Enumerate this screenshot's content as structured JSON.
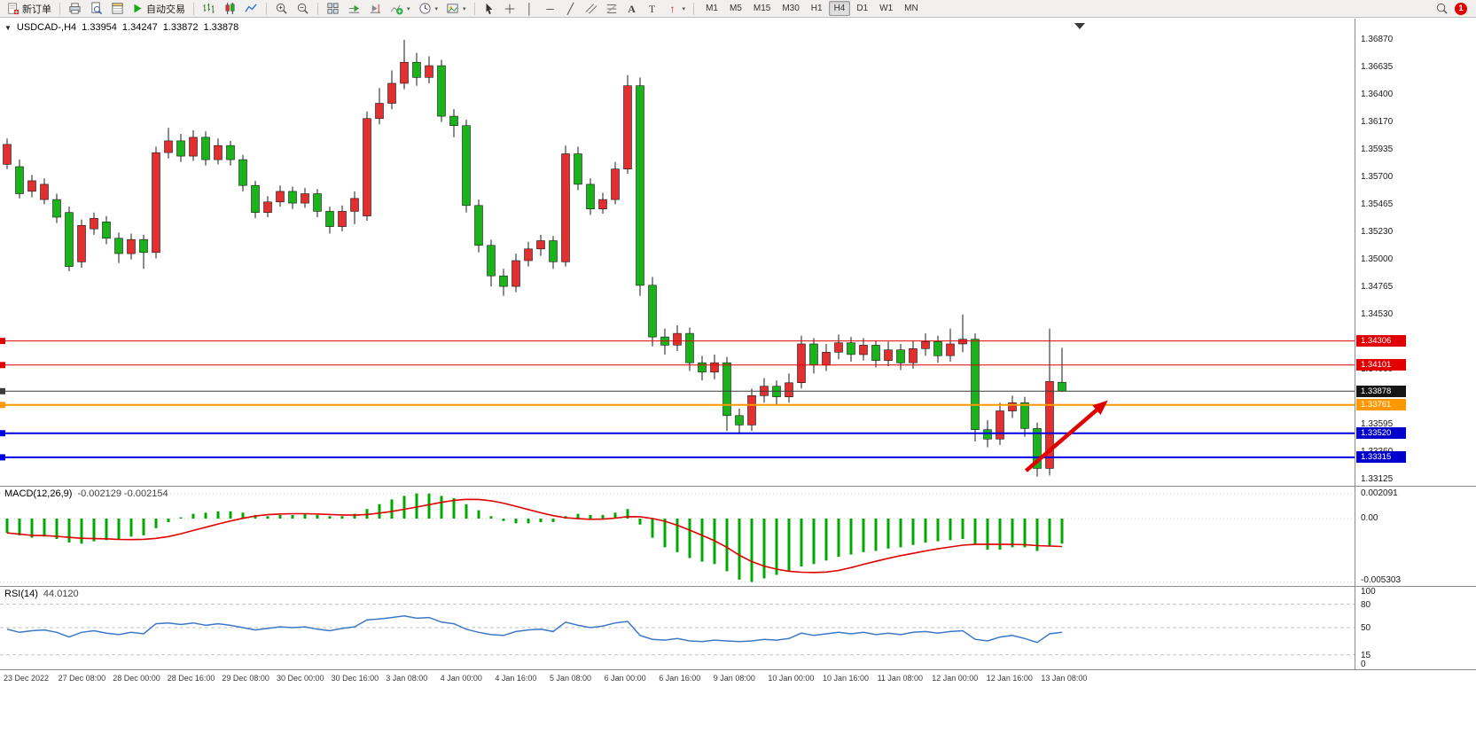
{
  "toolbar": {
    "new_order": "新订单",
    "auto_trading": "自动交易",
    "timeframes": [
      "M1",
      "M5",
      "M15",
      "M30",
      "H1",
      "H4",
      "D1",
      "W1",
      "MN"
    ],
    "active_timeframe": "H4",
    "notification_count": "1"
  },
  "chart": {
    "symbol_title": "USDCAD-,H4",
    "open": "1.33954",
    "high": "1.34247",
    "low": "1.33872",
    "close": "1.33878"
  },
  "price_axis": {
    "labels": [
      "1.36870",
      "1.36635",
      "1.36400",
      "1.36170",
      "1.35935",
      "1.35700",
      "1.35465",
      "1.35230",
      "1.35000",
      "1.34765",
      "1.34530",
      "1.34060",
      "1.33595",
      "1.33360",
      "1.33125"
    ],
    "badges": [
      {
        "value": "1.34306",
        "color": "#e00000"
      },
      {
        "value": "1.34101",
        "color": "#e00000"
      },
      {
        "value": "1.33878",
        "color": "#151515"
      },
      {
        "value": "1.33761",
        "color": "#ff9800"
      },
      {
        "value": "1.33520",
        "color": "#0000cc"
      },
      {
        "value": "1.33315",
        "color": "#0000cc"
      }
    ]
  },
  "time_axis": [
    "23 Dec 2022",
    "27 Dec 08:00",
    "28 Dec 00:00",
    "28 Dec 16:00",
    "29 Dec 08:00",
    "30 Dec 00:00",
    "30 Dec 16:00",
    "3 Jan 08:00",
    "4 Jan 00:00",
    "4 Jan 16:00",
    "5 Jan 08:00",
    "6 Jan 00:00",
    "6 Jan 16:00",
    "9 Jan 08:00",
    "10 Jan 00:00",
    "10 Jan 16:00",
    "11 Jan 08:00",
    "12 Jan 00:00",
    "12 Jan 16:00",
    "13 Jan 08:00"
  ],
  "chart_data": {
    "type": "candlestick",
    "symbol": "USDCAD",
    "timeframe": "H4",
    "up_color": "#e03030",
    "down_color": "#1cb21c",
    "price_range_visible": [
      1.3306,
      1.3696
    ],
    "ohlc": [
      [
        1.3581,
        1.3603,
        1.3577,
        1.3598
      ],
      [
        1.3579,
        1.3585,
        1.3552,
        1.3556
      ],
      [
        1.3558,
        1.3572,
        1.3553,
        1.3567
      ],
      [
        1.3551,
        1.3569,
        1.3547,
        1.3564
      ],
      [
        1.3551,
        1.3556,
        1.3531,
        1.3536
      ],
      [
        1.354,
        1.3545,
        1.349,
        1.3494
      ],
      [
        1.3498,
        1.3534,
        1.3493,
        1.3529
      ],
      [
        1.3526,
        1.354,
        1.3521,
        1.3535
      ],
      [
        1.3532,
        1.3537,
        1.3513,
        1.3518
      ],
      [
        1.3518,
        1.3523,
        1.3497,
        1.3505
      ],
      [
        1.3505,
        1.3522,
        1.35,
        1.3517
      ],
      [
        1.3517,
        1.3521,
        1.3492,
        1.3506
      ],
      [
        1.3506,
        1.3596,
        1.3501,
        1.3591
      ],
      [
        1.3591,
        1.3612,
        1.3586,
        1.3601
      ],
      [
        1.3601,
        1.3607,
        1.3583,
        1.3588
      ],
      [
        1.3588,
        1.361,
        1.3584,
        1.3604
      ],
      [
        1.3604,
        1.3609,
        1.358,
        1.3585
      ],
      [
        1.3585,
        1.3603,
        1.3581,
        1.3597
      ],
      [
        1.3597,
        1.3601,
        1.358,
        1.3585
      ],
      [
        1.3585,
        1.3589,
        1.3558,
        1.3563
      ],
      [
        1.3563,
        1.3567,
        1.3535,
        1.354
      ],
      [
        1.354,
        1.3554,
        1.3536,
        1.3549
      ],
      [
        1.3549,
        1.3563,
        1.3545,
        1.3558
      ],
      [
        1.3558,
        1.3562,
        1.3543,
        1.3548
      ],
      [
        1.3548,
        1.3561,
        1.3544,
        1.3556
      ],
      [
        1.3556,
        1.356,
        1.3536,
        1.3541
      ],
      [
        1.3541,
        1.3545,
        1.3522,
        1.3528
      ],
      [
        1.3528,
        1.3546,
        1.3524,
        1.3541
      ],
      [
        1.3541,
        1.3558,
        1.353,
        1.3552
      ],
      [
        1.3537,
        1.3626,
        1.3533,
        1.362
      ],
      [
        1.362,
        1.3646,
        1.3615,
        1.3633
      ],
      [
        1.3633,
        1.3661,
        1.3628,
        1.365
      ],
      [
        1.365,
        1.3687,
        1.3645,
        1.3668
      ],
      [
        1.3668,
        1.3676,
        1.3648,
        1.3655
      ],
      [
        1.3655,
        1.3673,
        1.365,
        1.3665
      ],
      [
        1.3665,
        1.367,
        1.3617,
        1.3622
      ],
      [
        1.3622,
        1.3628,
        1.3604,
        1.3614
      ],
      [
        1.3614,
        1.3619,
        1.354,
        1.3546
      ],
      [
        1.3546,
        1.3551,
        1.3506,
        1.3512
      ],
      [
        1.3512,
        1.3517,
        1.3477,
        1.3486
      ],
      [
        1.3486,
        1.3492,
        1.3469,
        1.3477
      ],
      [
        1.3477,
        1.3505,
        1.3472,
        1.3499
      ],
      [
        1.3499,
        1.3515,
        1.3494,
        1.3509
      ],
      [
        1.3509,
        1.3521,
        1.3503,
        1.3516
      ],
      [
        1.3516,
        1.352,
        1.3492,
        1.3498
      ],
      [
        1.3498,
        1.3597,
        1.3494,
        1.359
      ],
      [
        1.359,
        1.3596,
        1.3559,
        1.3564
      ],
      [
        1.3564,
        1.3569,
        1.3538,
        1.3543
      ],
      [
        1.3543,
        1.3557,
        1.3539,
        1.3551
      ],
      [
        1.3551,
        1.3583,
        1.3547,
        1.3577
      ],
      [
        1.3577,
        1.3657,
        1.3573,
        1.3648
      ],
      [
        1.3648,
        1.3655,
        1.3469,
        1.3478
      ],
      [
        1.3478,
        1.3485,
        1.3426,
        1.3434
      ],
      [
        1.3434,
        1.3441,
        1.3419,
        1.3427
      ],
      [
        1.3427,
        1.3444,
        1.3422,
        1.3437
      ],
      [
        1.3437,
        1.3442,
        1.3405,
        1.3412
      ],
      [
        1.3412,
        1.3418,
        1.3397,
        1.3404
      ],
      [
        1.3404,
        1.3419,
        1.3398,
        1.3412
      ],
      [
        1.3412,
        1.3417,
        1.3354,
        1.3367
      ],
      [
        1.3367,
        1.3373,
        1.3351,
        1.3359
      ],
      [
        1.3359,
        1.339,
        1.3354,
        1.3384
      ],
      [
        1.3384,
        1.3399,
        1.3378,
        1.3392
      ],
      [
        1.3392,
        1.3397,
        1.3376,
        1.3383
      ],
      [
        1.3383,
        1.3403,
        1.3378,
        1.3395
      ],
      [
        1.3395,
        1.3435,
        1.339,
        1.3428
      ],
      [
        1.3428,
        1.3433,
        1.3403,
        1.341
      ],
      [
        1.341,
        1.3428,
        1.3405,
        1.3421
      ],
      [
        1.3421,
        1.3436,
        1.3415,
        1.3429
      ],
      [
        1.3429,
        1.3434,
        1.3413,
        1.3419
      ],
      [
        1.3419,
        1.3433,
        1.3414,
        1.3427
      ],
      [
        1.3427,
        1.3431,
        1.3408,
        1.3414
      ],
      [
        1.3414,
        1.343,
        1.3409,
        1.3423
      ],
      [
        1.3423,
        1.3428,
        1.3406,
        1.3412
      ],
      [
        1.3412,
        1.3431,
        1.3407,
        1.3424
      ],
      [
        1.3424,
        1.3437,
        1.3418,
        1.343
      ],
      [
        1.343,
        1.3435,
        1.3412,
        1.3418
      ],
      [
        1.3418,
        1.3441,
        1.3413,
        1.3428
      ],
      [
        1.3428,
        1.3453,
        1.3421,
        1.3432
      ],
      [
        1.3432,
        1.3437,
        1.3345,
        1.3355
      ],
      [
        1.3355,
        1.3363,
        1.334,
        1.3347
      ],
      [
        1.3347,
        1.3378,
        1.3342,
        1.3371
      ],
      [
        1.3371,
        1.3384,
        1.3365,
        1.3378
      ],
      [
        1.3378,
        1.3383,
        1.3349,
        1.3356
      ],
      [
        1.3356,
        1.3361,
        1.3315,
        1.3322
      ],
      [
        1.3322,
        1.3441,
        1.3316,
        1.3396
      ],
      [
        1.33954,
        1.34247,
        1.33872,
        1.33878
      ]
    ],
    "hlines": [
      {
        "price": 1.34306,
        "color": "#e00000",
        "width": 1
      },
      {
        "price": 1.34101,
        "color": "#e00000",
        "width": 1
      },
      {
        "price": 1.33878,
        "color": "#3c3c3c",
        "width": 1
      },
      {
        "price": 1.33761,
        "color": "#ff9800",
        "width": 2
      },
      {
        "price": 1.3352,
        "color": "#0000e0",
        "width": 2
      },
      {
        "price": 1.33315,
        "color": "#0000e0",
        "width": 2
      }
    ],
    "arrow_annotation": {
      "from": {
        "bar": 82.1,
        "price": 1.332
      },
      "to": {
        "bar": 88.7,
        "price": 1.338
      },
      "color": "#e00000"
    },
    "indicators": {
      "macd": {
        "label": "MACD(12,26,9)",
        "current": "-0.002129 -0.002154",
        "axis_labels": [
          "0.002091",
          "0.00",
          "-0.005303"
        ],
        "histogram_color": "#00a800",
        "signal_color": "#e00000",
        "histogram": [
          -0.0012,
          -0.0014,
          -0.0016,
          -0.0015,
          -0.0017,
          -0.002,
          -0.0021,
          -0.0019,
          -0.0018,
          -0.0017,
          -0.0015,
          -0.0014,
          -0.0008,
          -0.0003,
          0.0001,
          0.0004,
          0.0005,
          0.0006,
          0.0006,
          0.0005,
          0.0003,
          0.0002,
          0.0003,
          0.0003,
          0.0004,
          0.0003,
          0.0002,
          0.0002,
          0.0004,
          0.0008,
          0.0012,
          0.0016,
          0.0019,
          0.0021,
          0.0021,
          0.0019,
          0.0017,
          0.0012,
          0.0007,
          0.0002,
          -0.0002,
          -0.0004,
          -0.0004,
          -0.0003,
          -0.0003,
          0.0002,
          0.0004,
          0.0003,
          0.0003,
          0.0005,
          0.0008,
          -0.0005,
          -0.0016,
          -0.0024,
          -0.0028,
          -0.0033,
          -0.0036,
          -0.0038,
          -0.0044,
          -0.0051,
          -0.0053,
          -0.005,
          -0.0047,
          -0.0044,
          -0.004,
          -0.0038,
          -0.0035,
          -0.0032,
          -0.003,
          -0.0028,
          -0.0027,
          -0.0025,
          -0.0024,
          -0.0022,
          -0.002,
          -0.0019,
          -0.0018,
          -0.0017,
          -0.0022,
          -0.0026,
          -0.0026,
          -0.0024,
          -0.0024,
          -0.0027,
          -0.0023,
          -0.0021
        ]
      },
      "rsi": {
        "label": "RSI(14)",
        "current": "44.0120",
        "axis_labels": [
          "100",
          "80",
          "50",
          "15",
          "0"
        ],
        "levels": [
          80,
          50,
          15
        ],
        "line_color": "#3a78c8",
        "series": [
          48,
          44,
          46,
          47,
          44,
          38,
          44,
          46,
          43,
          41,
          44,
          42,
          55,
          56,
          54,
          56,
          53,
          55,
          53,
          50,
          47,
          49,
          51,
          50,
          51,
          48,
          46,
          49,
          51,
          60,
          61,
          63,
          65,
          62,
          63,
          57,
          55,
          48,
          44,
          41,
          40,
          45,
          47,
          48,
          45,
          57,
          53,
          50,
          52,
          56,
          58,
          40,
          35,
          34,
          36,
          33,
          32,
          34,
          33,
          32,
          33,
          35,
          34,
          36,
          43,
          40,
          42,
          44,
          42,
          44,
          41,
          43,
          41,
          44,
          45,
          43,
          45,
          46,
          35,
          33,
          38,
          40,
          36,
          31,
          42,
          44
        ]
      }
    }
  }
}
